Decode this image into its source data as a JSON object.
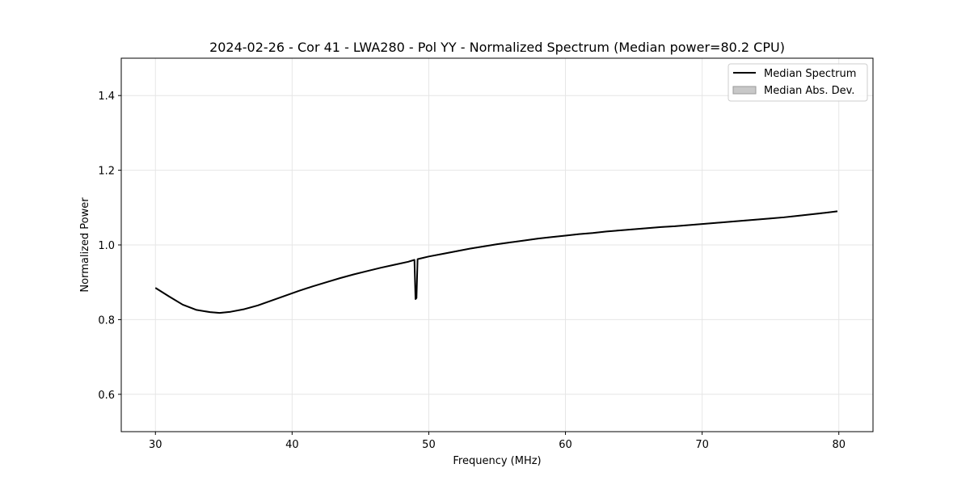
{
  "chart_data": {
    "type": "line",
    "title": "2024-02-26 - Cor 41 - LWA280 - Pol YY - Normalized Spectrum (Median power=80.2 CPU)",
    "xlabel": "Frequency (MHz)",
    "ylabel": "Normalized Power",
    "xlim": [
      27.5,
      82.5
    ],
    "ylim": [
      0.5,
      1.5
    ],
    "x_ticks": [
      30,
      40,
      50,
      60,
      70,
      80
    ],
    "x_tick_labels": [
      "30",
      "40",
      "50",
      "60",
      "70",
      "80"
    ],
    "y_ticks": [
      0.6,
      0.8,
      1.0,
      1.2,
      1.4
    ],
    "y_tick_labels": [
      "0.6",
      "0.8",
      "1.0",
      "1.2",
      "1.4"
    ],
    "grid": true,
    "legend_position": "top-right",
    "legend": [
      {
        "label": "Median Spectrum",
        "kind": "line",
        "color": "#000000"
      },
      {
        "label": "Median Abs. Dev.",
        "kind": "patch",
        "color": "#c8c8c8"
      }
    ],
    "series": [
      {
        "name": "Median Spectrum",
        "color": "#000000",
        "x": [
          30.0,
          31.0,
          32.0,
          33.0,
          34.0,
          34.7,
          35.5,
          36.5,
          37.5,
          38.5,
          39.5,
          40.5,
          41.5,
          42.5,
          43.5,
          44.5,
          45.5,
          46.5,
          47.5,
          48.5,
          48.95,
          49.03,
          49.1,
          49.18,
          49.3,
          50.0,
          51.0,
          52.0,
          53.0,
          54.0,
          55.0,
          56.0,
          57.0,
          58.0,
          59.0,
          60.0,
          61.0,
          62.0,
          63.0,
          64.0,
          65.0,
          66.0,
          67.0,
          68.0,
          69.0,
          70.0,
          71.0,
          72.0,
          73.0,
          74.0,
          75.0,
          76.0,
          77.0,
          78.0,
          79.0,
          79.9
        ],
        "y": [
          0.885,
          0.862,
          0.84,
          0.826,
          0.82,
          0.818,
          0.821,
          0.828,
          0.838,
          0.851,
          0.864,
          0.877,
          0.889,
          0.9,
          0.911,
          0.921,
          0.93,
          0.939,
          0.947,
          0.955,
          0.96,
          0.855,
          0.858,
          0.962,
          0.963,
          0.969,
          0.976,
          0.983,
          0.99,
          0.996,
          1.002,
          1.007,
          1.012,
          1.017,
          1.021,
          1.025,
          1.029,
          1.032,
          1.036,
          1.039,
          1.042,
          1.045,
          1.048,
          1.05,
          1.053,
          1.056,
          1.059,
          1.062,
          1.065,
          1.068,
          1.071,
          1.074,
          1.078,
          1.082,
          1.086,
          1.09
        ]
      },
      {
        "name": "Median Abs. Dev.",
        "kind": "band",
        "color": "#c8c8c8",
        "half_width": 0.002
      }
    ]
  }
}
